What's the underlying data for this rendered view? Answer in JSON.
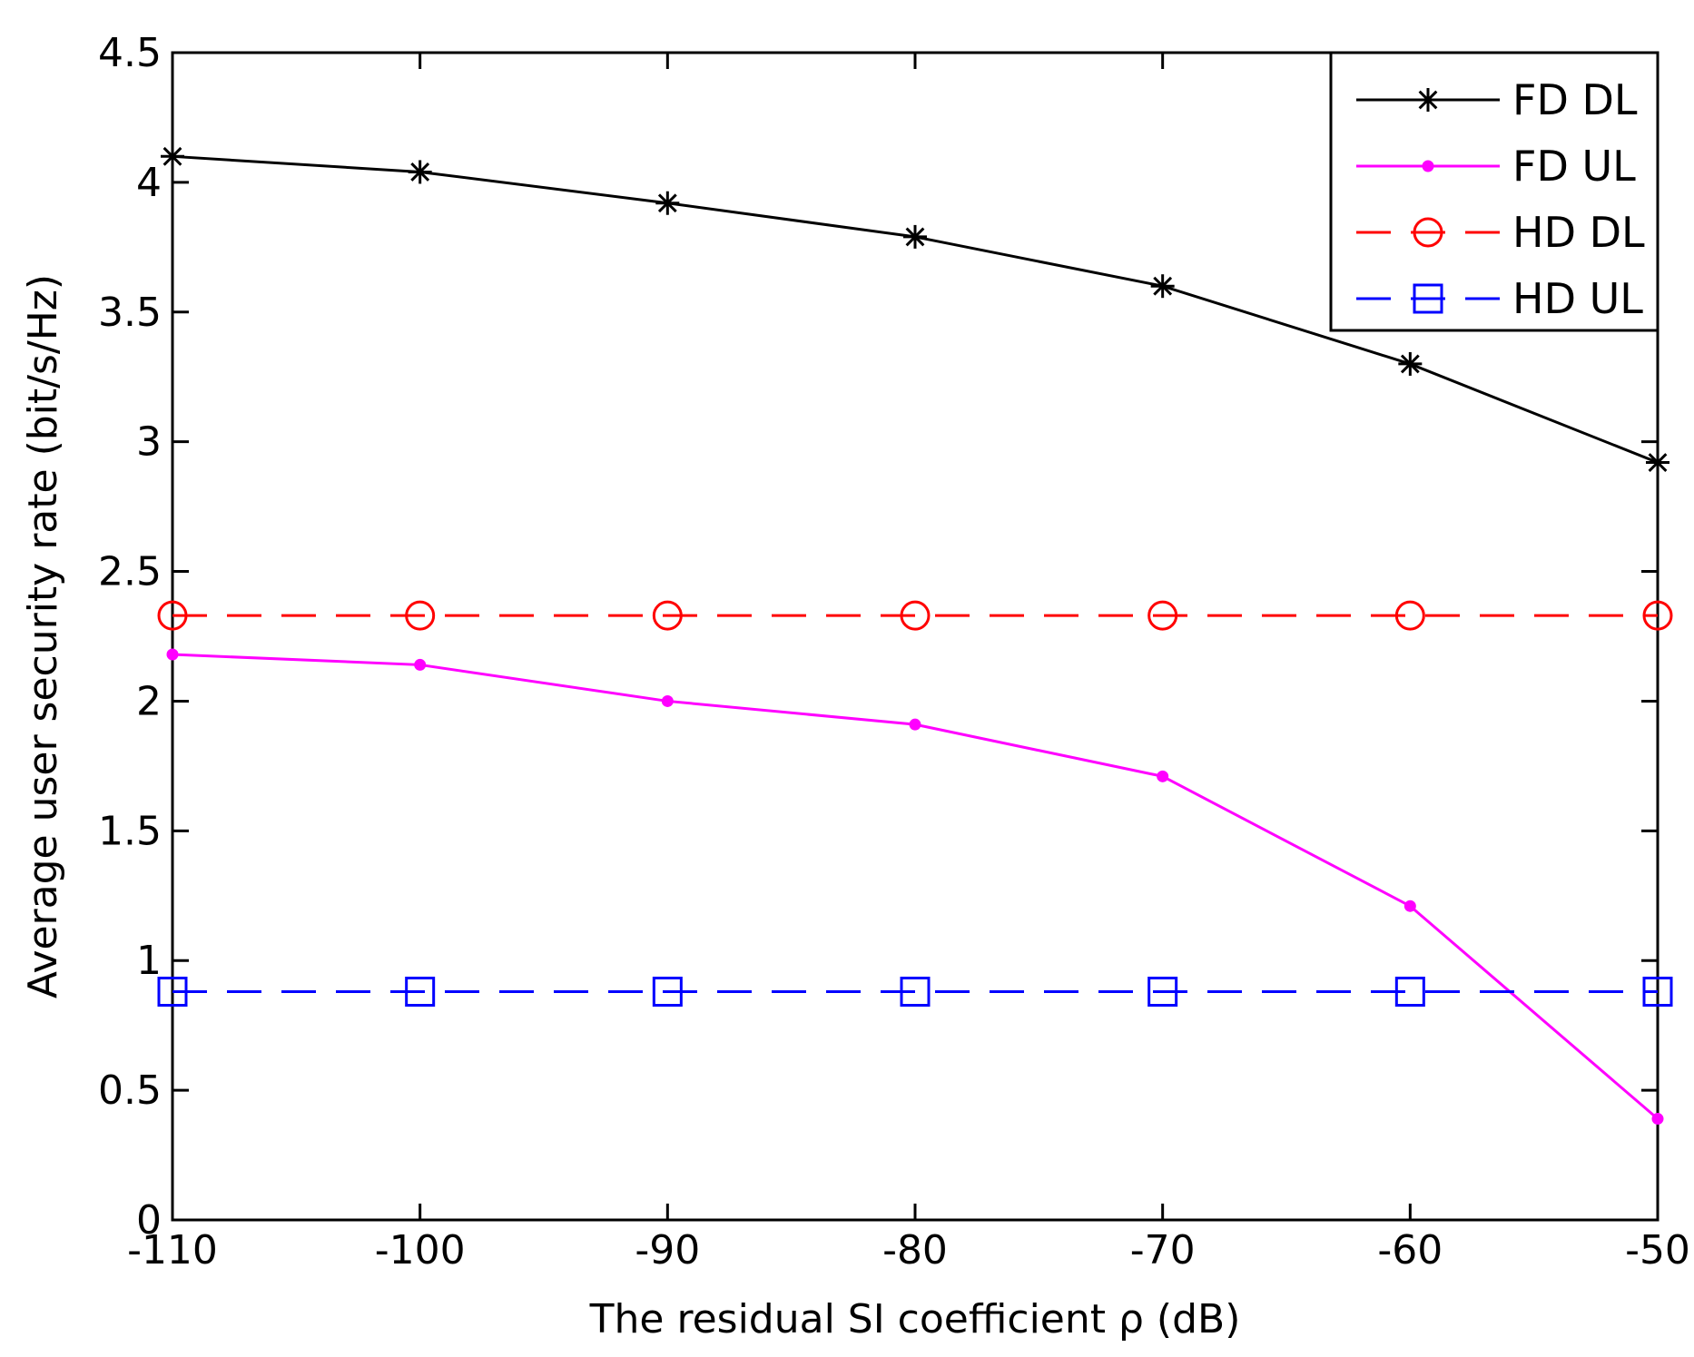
{
  "chart_data": {
    "type": "line",
    "title": "",
    "xlabel": "The residual SI coefficient ρ (dB)",
    "ylabel": "Average user security rate (bit/s/Hz)",
    "xlim": [
      -110,
      -50
    ],
    "ylim": [
      0,
      4.5
    ],
    "grid": false,
    "legend_position": "top-right",
    "x": [
      -110,
      -100,
      -90,
      -80,
      -70,
      -60,
      -50
    ],
    "x_ticks": [
      -110,
      -100,
      -90,
      -80,
      -70,
      -60,
      -50
    ],
    "x_tick_labels": [
      "-110",
      "-100",
      "-90",
      "-80",
      "-70",
      "-60",
      "-50"
    ],
    "y_ticks": [
      0,
      0.5,
      1,
      1.5,
      2,
      2.5,
      3,
      3.5,
      4,
      4.5
    ],
    "y_tick_labels": [
      "0",
      "0.5",
      "1",
      "1.5",
      "2",
      "2.5",
      "3",
      "3.5",
      "4",
      "4.5"
    ],
    "series": [
      {
        "name": "FD DL",
        "color": "#000000",
        "line_style": "solid",
        "marker": "star",
        "values": [
          4.1,
          4.04,
          3.92,
          3.79,
          3.6,
          3.3,
          2.92
        ]
      },
      {
        "name": "FD UL",
        "color": "#ff00ff",
        "line_style": "solid",
        "marker": "dot",
        "values": [
          2.18,
          2.14,
          2.0,
          1.91,
          1.71,
          1.21,
          0.39
        ]
      },
      {
        "name": "HD DL",
        "color": "#ff0000",
        "line_style": "dashed",
        "marker": "circle",
        "values": [
          2.33,
          2.33,
          2.33,
          2.33,
          2.33,
          2.33,
          2.33
        ]
      },
      {
        "name": "HD UL",
        "color": "#0000ff",
        "line_style": "dashed",
        "marker": "square",
        "values": [
          0.88,
          0.88,
          0.88,
          0.88,
          0.88,
          0.88,
          0.88
        ]
      }
    ]
  }
}
